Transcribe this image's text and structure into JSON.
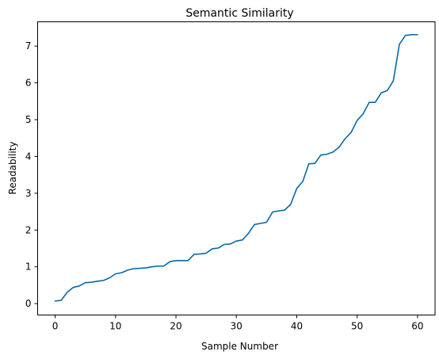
{
  "chart_data": {
    "type": "line",
    "title": "Semantic Similarity",
    "xlabel": "Sample Number",
    "ylabel": "Readability",
    "xlim": [
      -2.9,
      62.9
    ],
    "ylim": [
      -0.31,
      7.66
    ],
    "x_ticks": [
      0,
      10,
      20,
      30,
      40,
      50,
      60
    ],
    "y_ticks": [
      0,
      1,
      2,
      3,
      4,
      5,
      6,
      7
    ],
    "grid": false,
    "series": [
      {
        "color": "#0868a6",
        "x": [
          0,
          1,
          2,
          3,
          4,
          5,
          6,
          7,
          8,
          9,
          10,
          11,
          12,
          13,
          14,
          15,
          16,
          17,
          18,
          19,
          20,
          21,
          22,
          23,
          24,
          25,
          26,
          27,
          28,
          29,
          30,
          31,
          32,
          33,
          34,
          35,
          36,
          37,
          38,
          39,
          40,
          41,
          42,
          43,
          44,
          45,
          46,
          47,
          48,
          49,
          50,
          51,
          52,
          53,
          54,
          55,
          56,
          57,
          58,
          59,
          60
        ],
        "y": [
          0.07,
          0.09,
          0.31,
          0.44,
          0.48,
          0.57,
          0.58,
          0.61,
          0.63,
          0.7,
          0.81,
          0.84,
          0.91,
          0.95,
          0.96,
          0.97,
          1.0,
          1.02,
          1.02,
          1.14,
          1.17,
          1.17,
          1.17,
          1.34,
          1.35,
          1.37,
          1.49,
          1.51,
          1.61,
          1.62,
          1.7,
          1.73,
          1.91,
          2.15,
          2.18,
          2.21,
          2.49,
          2.52,
          2.54,
          2.7,
          3.13,
          3.32,
          3.8,
          3.81,
          4.04,
          4.06,
          4.12,
          4.25,
          4.48,
          4.65,
          4.98,
          5.16,
          5.47,
          5.47,
          5.73,
          5.79,
          6.06,
          7.05,
          7.29,
          7.31,
          7.31
        ]
      }
    ]
  }
}
